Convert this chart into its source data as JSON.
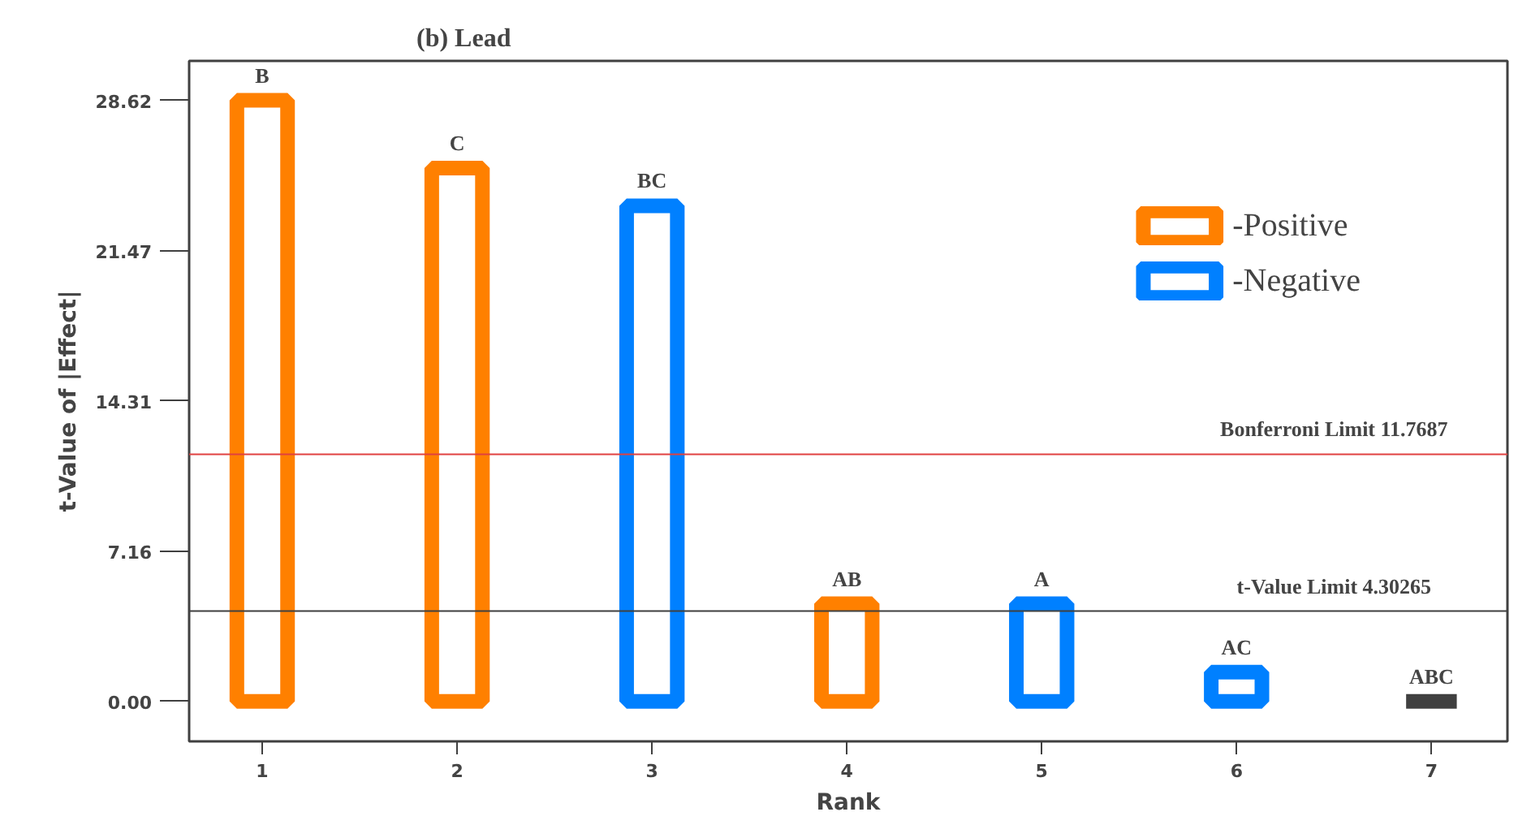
{
  "chart_data": {
    "type": "bar",
    "title": "(b) Lead",
    "xlabel": "Rank",
    "ylabel": "t-Value of |Effect|",
    "categories": [
      "1",
      "2",
      "3",
      "4",
      "5",
      "6",
      "7"
    ],
    "series": [
      {
        "name": "-Positive",
        "color": "#ff8000",
        "values": [
          28.62,
          25.4,
          null,
          4.65,
          null,
          null,
          null
        ]
      },
      {
        "name": "-Negative",
        "color": "#0080ff",
        "values": [
          null,
          null,
          23.6,
          null,
          4.65,
          1.4,
          null
        ]
      },
      {
        "color": "#404040",
        "values": [
          null,
          null,
          null,
          null,
          null,
          null,
          0
        ]
      }
    ],
    "ylim": [
      -1.9,
      30.5
    ],
    "yticks": [
      {
        "value": 0,
        "label": "0.00"
      },
      7.16,
      14.31,
      21.47,
      28.62
    ],
    "ref_lines": [
      {
        "axis": "y",
        "value": 11.7687,
        "label": "Bonferroni Limit 11.7687",
        "color": "#e04040"
      },
      {
        "axis": "y",
        "value": 4.30265,
        "label": "t-Value Limit 4.30265",
        "color": "#404040"
      }
    ],
    "annotations": [
      {
        "text": "B",
        "x": "1",
        "y": 28.62
      },
      {
        "text": "C",
        "x": "2",
        "y": 25.4
      },
      {
        "text": "BC",
        "x": "3",
        "y": 23.6
      },
      {
        "text": "AB",
        "x": "4",
        "y": 4.65
      },
      {
        "text": "A",
        "x": "5",
        "y": 4.65
      },
      {
        "text": "AC",
        "x": "6",
        "y": 1.4
      },
      {
        "text": "ABC",
        "x": "7",
        "y": 0
      }
    ],
    "grid": false,
    "legend": "top right"
  }
}
